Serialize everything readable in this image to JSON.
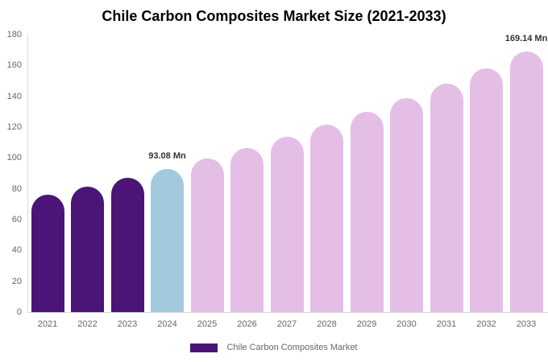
{
  "chart_data": {
    "type": "bar",
    "title": "Chile Carbon Composites Market Size (2021-2033)",
    "unit": "Mn",
    "categories": [
      "2021",
      "2022",
      "2023",
      "2024",
      "2025",
      "2026",
      "2027",
      "2028",
      "2029",
      "2030",
      "2031",
      "2032",
      "2033"
    ],
    "values": [
      76.3,
      81.5,
      87.1,
      93.08,
      99.5,
      106.3,
      113.6,
      121.4,
      129.7,
      138.6,
      148.1,
      158.3,
      169.14
    ],
    "labeled_points": [
      {
        "category": "2024",
        "label": "93.08 Mn"
      },
      {
        "category": "2033",
        "label": "169.14 Mn"
      }
    ],
    "ylim": [
      0,
      180
    ],
    "yticks": [
      0,
      20,
      40,
      60,
      80,
      100,
      120,
      140,
      160,
      180
    ],
    "grid": false,
    "legend": {
      "position": "bottom",
      "items": [
        "Chile Carbon Composites Market"
      ]
    },
    "colors": {
      "historical": "#4A1577",
      "highlight_2024": "#A3C9DF",
      "forecast": "#E5BEE6",
      "axis_line": "#D9D9D9",
      "tick_text": "#666666",
      "title_text": "#000000",
      "annotation_text": "#333333"
    },
    "color_keys": [
      "historical",
      "historical",
      "historical",
      "highlight_2024",
      "forecast",
      "forecast",
      "forecast",
      "forecast",
      "forecast",
      "forecast",
      "forecast",
      "forecast",
      "forecast"
    ]
  }
}
